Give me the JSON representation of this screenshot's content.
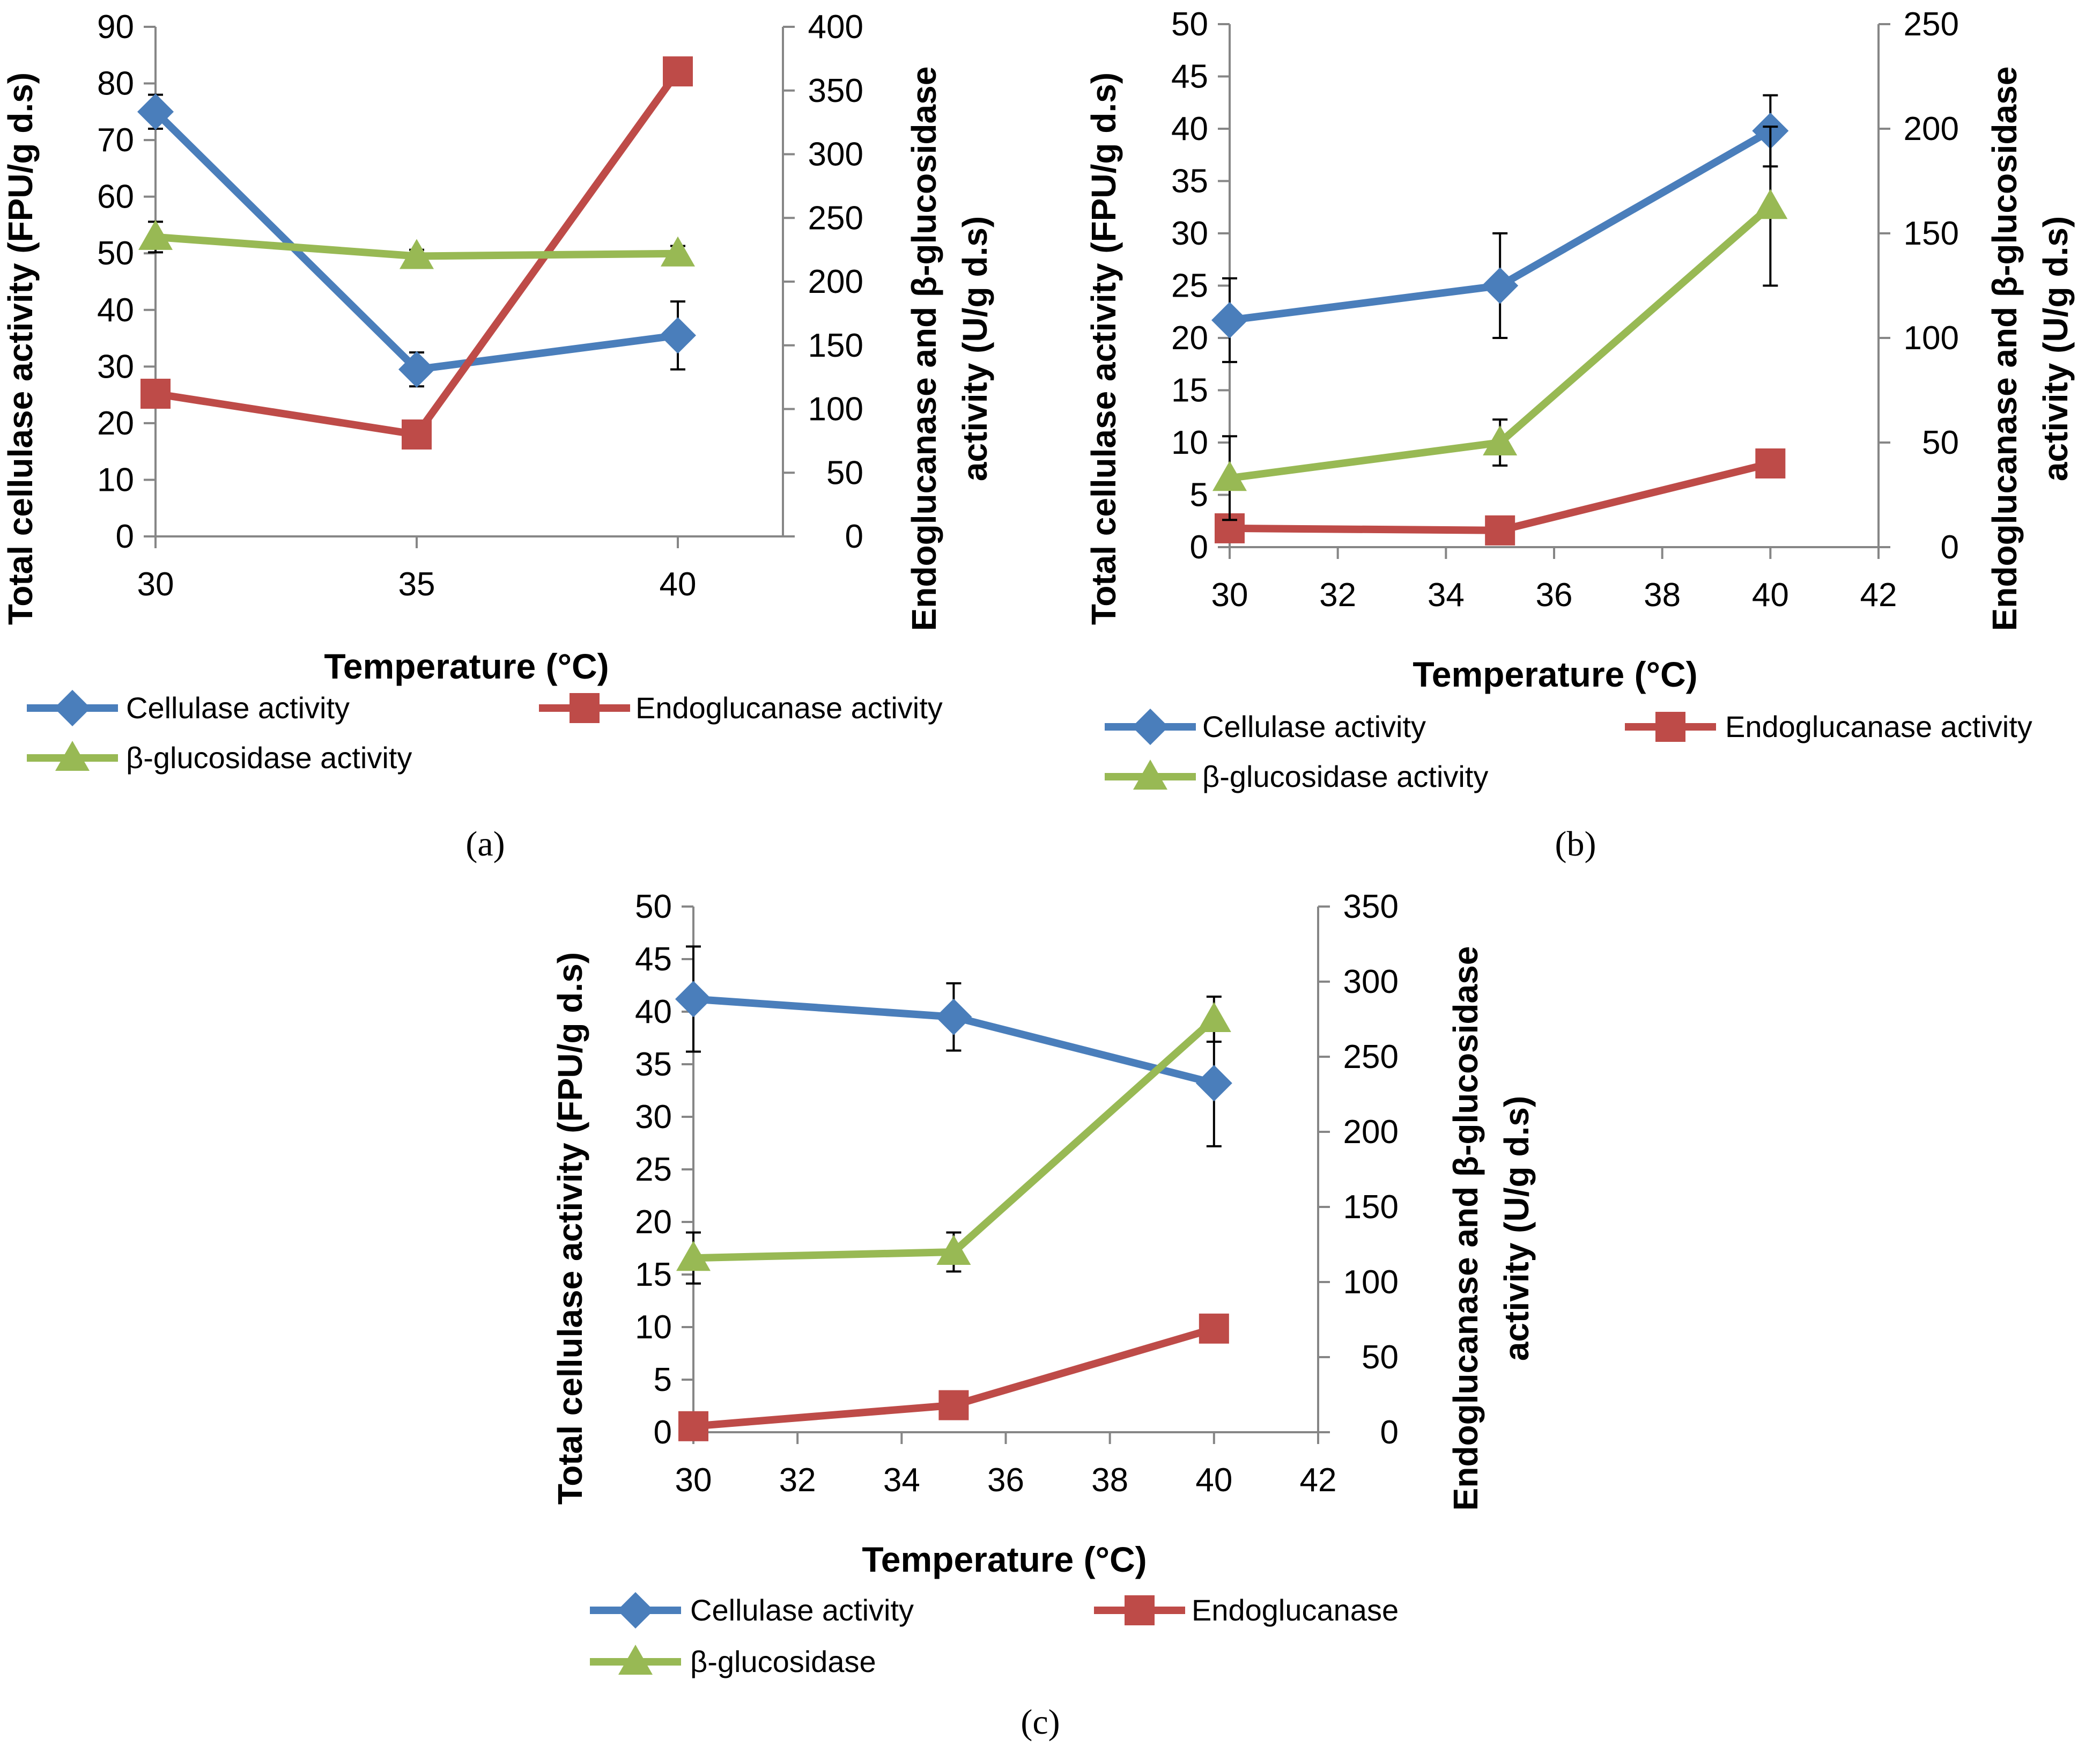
{
  "figure": {
    "series_colors": {
      "cellulase": "#4a7ebb",
      "endoglucanase": "#be4b48",
      "betaglucosidase": "#98b954"
    },
    "axis_color": "#868686"
  },
  "chart_data": [
    {
      "type": "line",
      "panel_label": "(a)",
      "x": [
        30,
        35,
        40
      ],
      "xlim": [
        30,
        42
      ],
      "xticks": [
        30,
        35,
        40
      ],
      "xlabel": "Temperature (°C)",
      "ylabel": "Total cellulase activity (FPU/g d.s)",
      "ylim": [
        0,
        90
      ],
      "yticks": [
        0,
        10,
        20,
        30,
        40,
        50,
        60,
        70,
        80,
        90
      ],
      "y2label_lines": [
        "Endoglucanase and β-glucosidase",
        "activity (U/g d.s)"
      ],
      "y2lim": [
        0,
        400
      ],
      "y2ticks": [
        0,
        50,
        100,
        150,
        200,
        250,
        300,
        350,
        400
      ],
      "series": [
        {
          "key": "cellulase",
          "name": "Cellulase activity",
          "axis": "y",
          "marker": "diamond",
          "values": [
            75,
            29.5,
            35.5
          ],
          "errors": [
            3,
            3,
            6
          ]
        },
        {
          "key": "endoglucanase",
          "name": "Endoglucanase activity",
          "axis": "y2",
          "marker": "square",
          "values": [
            112,
            80,
            365
          ],
          "errors": [
            0,
            0,
            0
          ]
        },
        {
          "key": "betaglucosidase",
          "name": "β-glucosidase activity",
          "axis": "y2",
          "marker": "triangle",
          "values": [
            235,
            220,
            222
          ],
          "errors": [
            12,
            5,
            6
          ]
        }
      ]
    },
    {
      "type": "line",
      "panel_label": "(b)",
      "x": [
        30,
        35,
        40
      ],
      "xlim": [
        30,
        42
      ],
      "xticks": [
        30,
        32,
        34,
        36,
        38,
        40,
        42
      ],
      "xlabel": "Temperature (°C)",
      "ylabel": "Total cellulase activity (FPU/g d.s)",
      "ylim": [
        0,
        50
      ],
      "yticks": [
        0,
        5,
        10,
        15,
        20,
        25,
        30,
        35,
        40,
        45,
        50
      ],
      "y2label_lines": [
        "Endoglucanase and β-glucosidase",
        "activity (U/g d.s)"
      ],
      "y2lim": [
        0,
        250
      ],
      "y2ticks": [
        0,
        50,
        100,
        150,
        200,
        250
      ],
      "series": [
        {
          "key": "cellulase",
          "name": "Cellulase activity",
          "axis": "y",
          "marker": "diamond",
          "values": [
            21.7,
            25,
            39.8
          ],
          "errors": [
            4,
            5,
            3.4
          ]
        },
        {
          "key": "endoglucanase",
          "name": "Endoglucanase activity",
          "axis": "y2",
          "marker": "square",
          "values": [
            9,
            8,
            40
          ],
          "errors": [
            0,
            0,
            0
          ]
        },
        {
          "key": "betaglucosidase",
          "name": "β-glucosidase activity",
          "axis": "y2",
          "marker": "triangle",
          "values": [
            33,
            50,
            163
          ],
          "errors": [
            20,
            11,
            38
          ]
        }
      ]
    },
    {
      "type": "line",
      "panel_label": "(c)",
      "x": [
        30,
        35,
        40
      ],
      "xlim": [
        30,
        42
      ],
      "xticks": [
        30,
        32,
        34,
        36,
        38,
        40,
        42
      ],
      "xlabel": "Temperature (°C)",
      "ylabel": "Total cellulase activity (FPU/g d.s)",
      "ylim": [
        0,
        50
      ],
      "yticks": [
        0,
        5,
        10,
        15,
        20,
        25,
        30,
        35,
        40,
        45,
        50
      ],
      "y2label_lines": [
        "Endoglucanase and β-glucosidase",
        "activity (U/g d.s)"
      ],
      "y2lim": [
        0,
        350
      ],
      "y2ticks": [
        0,
        50,
        100,
        150,
        200,
        250,
        300,
        350
      ],
      "series": [
        {
          "key": "cellulase",
          "name": "Cellulase activity",
          "axis": "y",
          "marker": "diamond",
          "values": [
            41.2,
            39.5,
            33.2
          ],
          "errors": [
            5,
            3.2,
            6
          ]
        },
        {
          "key": "endoglucanase",
          "name": "Endoglucanase",
          "axis": "y2",
          "marker": "square",
          "values": [
            4,
            18,
            69
          ],
          "errors": [
            0,
            0,
            0
          ]
        },
        {
          "key": "betaglucosidase",
          "name": "β-glucosidase",
          "axis": "y2",
          "marker": "triangle",
          "values": [
            116,
            120,
            275
          ],
          "errors": [
            17,
            13,
            15
          ]
        }
      ]
    }
  ]
}
